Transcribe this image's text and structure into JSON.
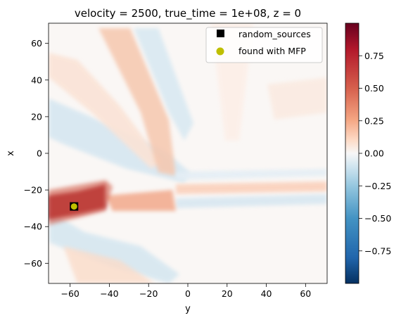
{
  "chart_data": {
    "type": "heatmap",
    "title": "velocity = 2500, true_time = 1e+08, z = 0",
    "xlabel": "y",
    "ylabel": "x",
    "xlim": [
      -71,
      71
    ],
    "ylim": [
      -71,
      71
    ],
    "x_ticks": [
      -60,
      -40,
      -20,
      0,
      20,
      40,
      60
    ],
    "x_tick_labels": [
      "−60",
      "−40",
      "−20",
      "0",
      "20",
      "40",
      "60"
    ],
    "y_ticks": [
      60,
      40,
      20,
      0,
      -20,
      -40,
      -60
    ],
    "y_tick_labels": [
      "60",
      "40",
      "20",
      "0",
      "−20",
      "−40",
      "−60"
    ],
    "colormap": "RdBu_r",
    "colorbar": {
      "range": [
        -1.0,
        1.0
      ],
      "ticks": [
        0.75,
        0.5,
        0.25,
        0.0,
        -0.25,
        -0.5,
        -0.75
      ],
      "tick_labels": [
        "0.75",
        "0.50",
        "0.25",
        "0.00",
        "−0.25",
        "−0.50",
        "−0.75"
      ]
    },
    "legend": {
      "placement": "upper-right",
      "entries": [
        {
          "label": "random_sources",
          "marker": "square",
          "color": "#000000"
        },
        {
          "label": "found with MFP",
          "marker": "circle",
          "color": "#bfbf00"
        }
      ]
    },
    "points": {
      "random_sources": [
        {
          "y": -58,
          "x": -29
        }
      ],
      "found_with_mfp": [
        {
          "y": -58,
          "x": -29
        }
      ]
    }
  }
}
